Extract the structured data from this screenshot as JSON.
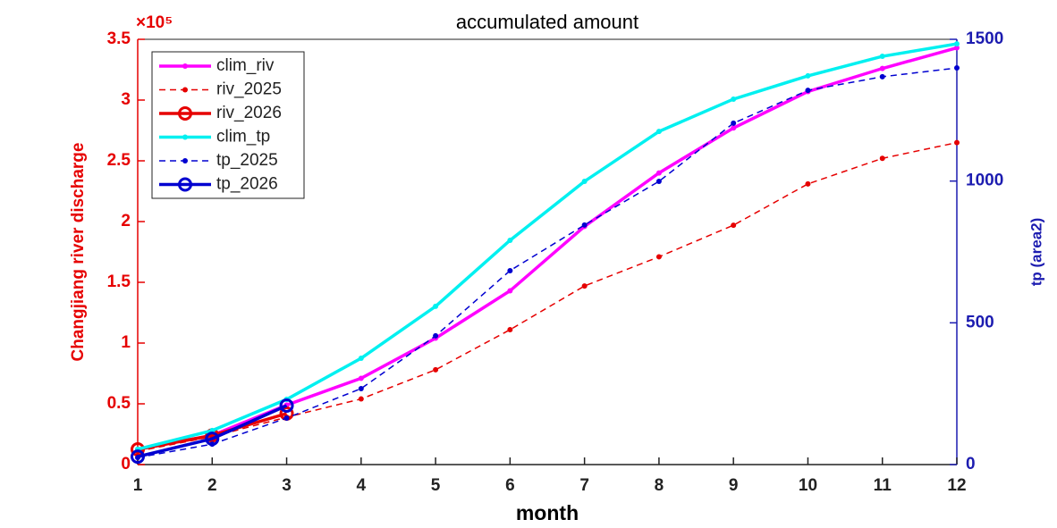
{
  "chart_data": {
    "type": "line",
    "title": "accumulated amount",
    "x_label": "month",
    "y_label": "Changjiang river discharge",
    "y_multiplier": "×10⁵",
    "y2_label": "tp (area2)",
    "x": [
      1,
      2,
      3,
      4,
      5,
      6,
      7,
      8,
      9,
      10,
      11,
      12
    ],
    "xlim": [
      1,
      12
    ],
    "xticks": [
      1,
      2,
      3,
      4,
      5,
      6,
      7,
      8,
      9,
      10,
      11,
      12
    ],
    "ylim": [
      0,
      3.5
    ],
    "yticks": [
      0,
      0.5,
      1,
      1.5,
      2,
      2.5,
      3,
      3.5
    ],
    "y2lim": [
      0,
      1500
    ],
    "y2ticks": [
      0,
      500,
      1000,
      1500
    ],
    "y_color": "#e60000",
    "y2_color": "#1c1cb0",
    "legend": "upper left",
    "series": [
      {
        "name": "clim_riv",
        "color": "#ff00ff",
        "line_style": "solid",
        "marker": "dot",
        "values": [
          0.125,
          0.24,
          0.49,
          0.71,
          1.04,
          1.43,
          1.96,
          2.4,
          2.77,
          3.07,
          3.26,
          3.43
        ]
      },
      {
        "name": "riv_2025",
        "color": "#e60000",
        "line_style": "dashed",
        "marker": "dot",
        "values": [
          0.11,
          0.23,
          0.39,
          0.54,
          0.78,
          1.11,
          1.47,
          1.71,
          1.97,
          2.31,
          2.52,
          2.65
        ]
      },
      {
        "name": "riv_2026",
        "color": "#e60000",
        "line_style": "solid",
        "marker": "circle",
        "values": [
          0.125,
          0.24,
          0.42,
          null,
          null,
          null,
          null,
          null,
          null,
          null,
          null,
          null
        ]
      },
      {
        "name": "clim_tp",
        "color": "#00f0f0",
        "line_style": "solid",
        "marker": "dot",
        "axis": "y2",
        "values": [
          54,
          120,
          230,
          375,
          558,
          791,
          999,
          1175,
          1289,
          1371,
          1440,
          1484
        ]
      },
      {
        "name": "tp_2025",
        "color": "#0000d0",
        "line_style": "dashed",
        "marker": "dot",
        "axis": "y2",
        "values": [
          25,
          72,
          164,
          268,
          454,
          684,
          845,
          999,
          1204,
          1320,
          1368,
          1399
        ]
      },
      {
        "name": "tp_2026",
        "color": "#0000d0",
        "line_style": "solid",
        "marker": "circle",
        "axis": "y2",
        "values": [
          28,
          91,
          208,
          null,
          null,
          null,
          null,
          null,
          null,
          null,
          null,
          null
        ]
      }
    ]
  }
}
